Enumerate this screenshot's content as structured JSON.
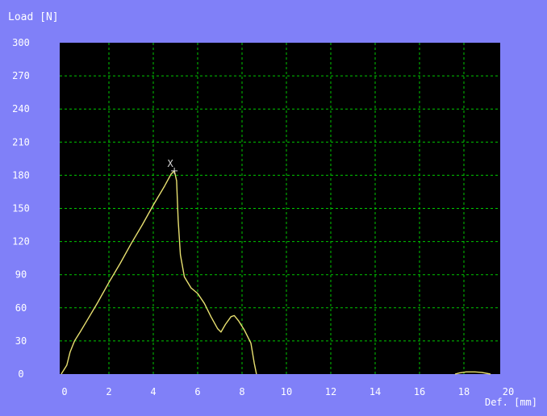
{
  "colors": {
    "background": "#8080f8",
    "plot_area": "#000000",
    "grid": "#00c800",
    "curve": "#e8e070",
    "text": "#ffffff",
    "marker": "#d8d8d8"
  },
  "chart_data": {
    "type": "line",
    "ylabel": "Load [N]",
    "xlabel": "Def. [mm]",
    "xlim": [
      0,
      20
    ],
    "ylim": [
      0,
      300
    ],
    "x_ticks": [
      0,
      2,
      4,
      6,
      8,
      10,
      12,
      14,
      16,
      18,
      20
    ],
    "y_ticks": [
      0,
      30,
      60,
      90,
      120,
      150,
      180,
      210,
      240,
      270,
      300
    ],
    "grid": true,
    "peak_marker": {
      "label": "X",
      "x": 4.95,
      "y": 184
    },
    "series": [
      {
        "points": [
          [
            -0.15,
            0
          ],
          [
            0.1,
            8
          ],
          [
            0.25,
            20
          ],
          [
            0.45,
            30
          ],
          [
            0.7,
            38
          ],
          [
            1.0,
            48
          ],
          [
            1.5,
            65
          ],
          [
            2.0,
            83
          ],
          [
            2.5,
            100
          ],
          [
            3.0,
            118
          ],
          [
            3.5,
            135
          ],
          [
            4.0,
            153
          ],
          [
            4.5,
            170
          ],
          [
            4.8,
            181
          ],
          [
            4.95,
            184
          ],
          [
            5.05,
            175
          ],
          [
            5.12,
            140
          ],
          [
            5.22,
            108
          ],
          [
            5.4,
            88
          ],
          [
            5.7,
            78
          ],
          [
            6.0,
            73
          ],
          [
            6.3,
            64
          ],
          [
            6.6,
            52
          ],
          [
            6.9,
            41
          ],
          [
            7.05,
            38
          ],
          [
            7.25,
            45
          ],
          [
            7.5,
            52
          ],
          [
            7.65,
            53
          ],
          [
            7.85,
            48
          ],
          [
            8.1,
            40
          ],
          [
            8.4,
            28
          ],
          [
            8.55,
            10
          ],
          [
            8.65,
            0
          ]
        ]
      },
      {
        "points": [
          [
            17.6,
            0
          ],
          [
            17.8,
            1
          ],
          [
            18.1,
            2
          ],
          [
            18.5,
            2
          ],
          [
            18.8,
            1.5
          ],
          [
            19.2,
            0
          ]
        ]
      }
    ]
  }
}
